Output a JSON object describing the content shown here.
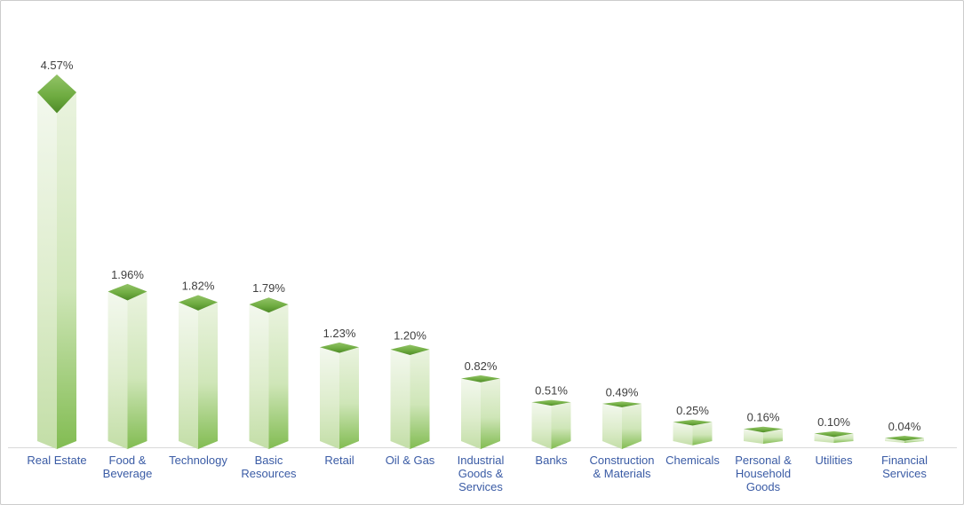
{
  "chart_data": {
    "type": "bar",
    "title": "",
    "subtitle": "",
    "unit": "%",
    "bar_style": "3d-column-diamond-top",
    "grid": false,
    "legend": false,
    "ylim": [
      0,
      5
    ],
    "categories": [
      "Real Estate",
      "Food & Beverage",
      "Technology",
      "Basic Resources",
      "Retail",
      "Oil & Gas",
      "Industrial Goods & Services",
      "Banks",
      "Construction & Materials",
      "Chemicals",
      "Personal & Household Goods",
      "Utilities",
      "Financial Services"
    ],
    "category_label_lines": [
      "Real Estate",
      "Food &\nBeverage",
      "Technology",
      "Basic\nResources",
      "Retail",
      "Oil & Gas",
      "Industrial\nGoods &\nServices",
      "Banks",
      "Construction\n& Materials",
      "Chemicals",
      "Personal &\nHousehold\nGoods",
      "Utilities",
      "Financial\nServices"
    ],
    "values": [
      4.57,
      1.96,
      1.82,
      1.79,
      1.23,
      1.2,
      0.82,
      0.51,
      0.49,
      0.25,
      0.16,
      0.1,
      0.04
    ],
    "value_labels": [
      "4.57%",
      "1.96%",
      "1.82%",
      "1.79%",
      "1.23%",
      "1.20%",
      "0.82%",
      "0.51%",
      "0.49%",
      "0.25%",
      "0.16%",
      "0.10%",
      "0.04%"
    ],
    "colors": {
      "background": "#FFFFFF",
      "border": "#CCCCCC",
      "value_label": "#3F3F3F",
      "category_label": "#3A5BA5",
      "axis_line": "#D9D9D9",
      "top_face_gradient": [
        "#93C367",
        "#6FAC41",
        "#4E8A27"
      ],
      "left_face_gradient": [
        "#F3F8EE",
        "#DEEDCD",
        "#C3DEA7"
      ],
      "right_face_gradient": [
        "#EAF3DF",
        "#CFE6B8",
        "#82BC52"
      ]
    }
  }
}
